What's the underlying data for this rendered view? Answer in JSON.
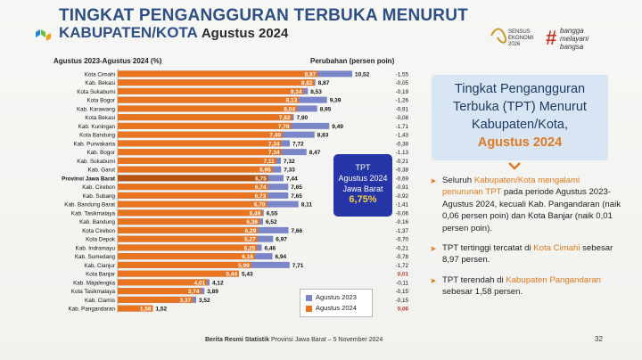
{
  "header": {
    "title_line1": "TINGKAT PENGANGGURAN TERBUKA MENURUT",
    "title_line2": "KABUPATEN/KOTA",
    "title_month": "Agustus 2024",
    "logo_sensus_text": [
      "SENSUS",
      "EKONOMI",
      "2026"
    ],
    "logo_bangga_text": [
      "bangga",
      "melayani",
      "bangsa"
    ]
  },
  "chart_header": {
    "left": "Agustus 2023-Agustus 2024 (%)",
    "right": "Perubahan (persen poin)"
  },
  "info_box": {
    "line1": "TPT",
    "line2": "Agustus 2024",
    "line3": "Jawa Barat",
    "value": "6,75%"
  },
  "chart_data": {
    "type": "bar",
    "orientation": "horizontal",
    "categories": [
      "Kota Cimahi",
      "Kab. Bekasi",
      "Kota Sukabumi",
      "Kota Bogor",
      "Kab. Karawang",
      "Kota Bekasi",
      "Kab. Kuningan",
      "Kota Bandung",
      "Kab. Purwakarta",
      "Kab. Bogor",
      "Kab. Sukabumi",
      "Kab. Garut",
      "Provinsi Jawa Barat",
      "Kab. Cirebon",
      "Kab. Subang",
      "Kab. Bandung Barat",
      "Kab. Tasikmalaya",
      "Kab. Bandung",
      "Kota Cirebon",
      "Kota Depok",
      "Kab. Indramayu",
      "Kab. Sumedang",
      "Kab. Cianjur",
      "Kota Banjar",
      "Kab. Majalengka",
      "Kota Tasikmalaya",
      "Kab. Ciamis",
      "Kab. Pangandaran"
    ],
    "series": [
      {
        "name": "Agustus 2023",
        "values": [
          10.52,
          8.87,
          8.53,
          9.39,
          8.95,
          7.9,
          9.49,
          8.83,
          7.72,
          8.47,
          7.32,
          7.33,
          7.44,
          7.65,
          7.65,
          8.11,
          6.55,
          6.52,
          7.66,
          6.97,
          6.46,
          6.94,
          7.71,
          5.43,
          4.12,
          3.89,
          3.52,
          1.52
        ]
      },
      {
        "name": "Agustus 2024",
        "values": [
          8.97,
          8.82,
          8.34,
          8.13,
          8.04,
          7.82,
          7.78,
          7.4,
          7.34,
          7.34,
          7.11,
          6.95,
          6.75,
          6.74,
          6.73,
          6.7,
          6.49,
          6.36,
          6.29,
          6.27,
          6.25,
          6.16,
          5.99,
          5.44,
          4.01,
          3.74,
          3.37,
          1.58
        ]
      }
    ],
    "labels_2023": [
      "10,52",
      "8,87",
      "8,53",
      "9,39",
      "8,95",
      "7,90",
      "9,49",
      "8,83",
      "7,72",
      "8,47",
      "7,32",
      "7,33",
      "7,44",
      "7,65",
      "7,65",
      "8,11",
      "6,55",
      "6,52",
      "7,66",
      "6,97",
      "6,46",
      "6,94",
      "7,71",
      "5,43",
      "4,12",
      "3,89",
      "3,52",
      "1,52"
    ],
    "labels_2024": [
      "8,97",
      "8,82",
      "8,34",
      "8,13",
      "8,04",
      "7,82",
      "7,78",
      "7,40",
      "7,34",
      "7,34",
      "7,11",
      "6,95",
      "6,75",
      "6,74",
      "6,73",
      "6,70",
      "6,49",
      "6,36",
      "6,29",
      "6,27",
      "6,25",
      "6,16",
      "5,99",
      "5,44",
      "4,01",
      "3,74",
      "3,37",
      "1,58"
    ],
    "changes": [
      "-1,55",
      "-0,05",
      "-0,19",
      "-1,26",
      "-0,91",
      "-0,08",
      "-1,71",
      "-1,43",
      "-0,38",
      "-1,13",
      "-0,21",
      "-0,38",
      "-0,69",
      "-0,91",
      "-0,92",
      "-1,41",
      "-0,06",
      "-0,16",
      "-1,37",
      "-0,70",
      "-0,21",
      "-0,78",
      "-1,72",
      "0,01",
      "-0,11",
      "-0,15",
      "-0,15",
      "0,06"
    ],
    "highlight_category": "Provinsi Jawa Barat",
    "xlim": [
      0,
      11
    ],
    "colors": {
      "Agustus 2023": "#7b86c9",
      "Agustus 2024": "#e8741f",
      "highlight": "#b8540f"
    }
  },
  "legend": {
    "item_2023": "Agustus 2023",
    "item_2024": "Agustus 2024"
  },
  "right_panel": {
    "line1": "Tingkat Pengangguran",
    "line2": "Terbuka (TPT) Menurut",
    "line3": "Kabupaten/Kota,",
    "accent": "Agustus 2024"
  },
  "bullets": [
    {
      "pre": "Seluruh ",
      "hl": "Kabupaten/Kota mengalami penurunan TPT",
      "post": " pada periode Agustus 2023-Agustus 2024, kecuali Kab. Pangandaran (naik 0,06 persen poin) dan Kota Banjar (naik 0,01 persen poin)."
    },
    {
      "pre": "TPT tertinggi tercatat di ",
      "hl": "Kota Cimahi",
      "post": " sebesar 8,97 persen."
    },
    {
      "pre": "TPT terendah di ",
      "hl": "Kabupaten Pangandaran",
      "post": " sebesar 1,58 persen."
    }
  ],
  "footer": {
    "bold": "Berita Resmi Statistik",
    "rest": "Provinsi Jawa Barat – 5  November 2024",
    "page": "32"
  }
}
